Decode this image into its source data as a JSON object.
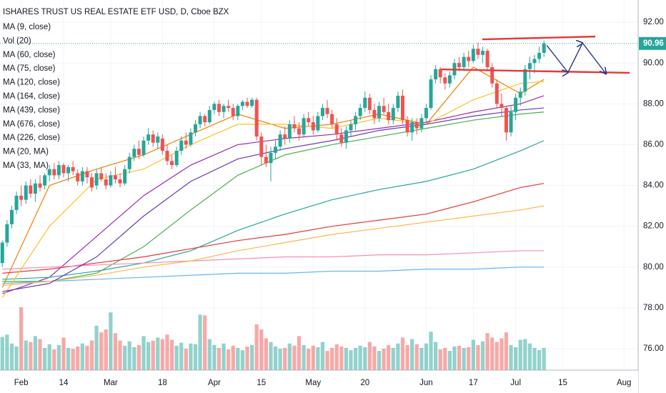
{
  "chart_data": {
    "type": "candlestick",
    "title": "ISHARES TRUST US REAL ESTATE ETF USD, D, Cboe BZX",
    "up_color": "#26a69a",
    "down_color": "#ef5350",
    "xlim": [
      -0.5,
      135
    ],
    "ylim": [
      74.95,
      93.09
    ],
    "xticks": [
      {
        "value": 4,
        "label": "Feb"
      },
      {
        "value": 13,
        "label": "14"
      },
      {
        "value": 23,
        "label": "Mar"
      },
      {
        "value": 34,
        "label": "18"
      },
      {
        "value": 45,
        "label": "Apr"
      },
      {
        "value": 55,
        "label": "15"
      },
      {
        "value": 66,
        "label": "May"
      },
      {
        "value": 77,
        "label": "20"
      },
      {
        "value": 90,
        "label": "Jun"
      },
      {
        "value": 100,
        "label": "17"
      },
      {
        "value": 109,
        "label": "Jul"
      },
      {
        "value": 119,
        "label": "15"
      },
      {
        "value": 132,
        "label": "Aug"
      }
    ],
    "yticks": [
      {
        "value": 76,
        "label": "76.00"
      },
      {
        "value": 78,
        "label": "78.00"
      },
      {
        "value": 80,
        "label": "80.00"
      },
      {
        "value": 82,
        "label": "82.00"
      },
      {
        "value": 84,
        "label": "84.00"
      },
      {
        "value": 86,
        "label": "86.00"
      },
      {
        "value": 88,
        "label": "88.00"
      },
      {
        "value": 90,
        "label": "90.00"
      },
      {
        "value": 92,
        "label": "92.00"
      }
    ],
    "grid": true,
    "last_price": 90.96,
    "last_price_color": "#26a69a",
    "candles": [
      [
        80.2,
        81.3,
        80.0,
        81.2
      ],
      [
        81.2,
        82.3,
        81.0,
        82.1
      ],
      [
        82.1,
        83.0,
        81.9,
        82.8
      ],
      [
        82.8,
        83.7,
        82.6,
        83.5
      ],
      [
        83.5,
        84.0,
        83.0,
        83.3
      ],
      [
        83.3,
        84.2,
        83.1,
        84.0
      ],
      [
        84.0,
        84.3,
        83.4,
        83.6
      ],
      [
        83.6,
        84.3,
        83.2,
        84.1
      ],
      [
        84.1,
        84.5,
        83.7,
        83.9
      ],
      [
        84.0,
        84.6,
        83.8,
        84.5
      ],
      [
        84.5,
        85.0,
        84.2,
        84.8
      ],
      [
        84.8,
        85.1,
        84.3,
        84.5
      ],
      [
        84.5,
        85.2,
        84.3,
        85.0
      ],
      [
        85.0,
        85.1,
        84.4,
        84.6
      ],
      [
        84.6,
        85.0,
        84.2,
        84.9
      ],
      [
        84.9,
        85.2,
        84.5,
        84.7
      ],
      [
        84.6,
        84.8,
        84.0,
        84.2
      ],
      [
        84.2,
        84.9,
        84.0,
        84.7
      ],
      [
        84.7,
        84.9,
        84.1,
        84.4
      ],
      [
        84.4,
        84.6,
        83.7,
        83.9
      ],
      [
        84.0,
        84.8,
        83.8,
        84.6
      ],
      [
        84.6,
        84.9,
        84.2,
        84.3
      ],
      [
        84.3,
        84.6,
        83.8,
        84.0
      ],
      [
        84.0,
        84.7,
        83.9,
        84.5
      ],
      [
        84.5,
        84.9,
        84.1,
        84.3
      ],
      [
        84.3,
        84.6,
        83.9,
        84.1
      ],
      [
        84.1,
        85.0,
        84.0,
        84.8
      ],
      [
        84.8,
        85.6,
        84.6,
        85.4
      ],
      [
        85.4,
        86.0,
        85.2,
        85.8
      ],
      [
        85.8,
        86.2,
        85.3,
        85.5
      ],
      [
        85.5,
        86.4,
        85.4,
        86.2
      ],
      [
        86.2,
        86.8,
        86.0,
        86.5
      ],
      [
        86.5,
        86.7,
        85.9,
        86.1
      ],
      [
        86.1,
        86.6,
        85.8,
        86.4
      ],
      [
        86.3,
        86.5,
        85.5,
        85.7
      ],
      [
        85.7,
        86.0,
        85.0,
        85.2
      ],
      [
        85.2,
        85.5,
        84.8,
        85.0
      ],
      [
        85.0,
        85.9,
        84.9,
        85.7
      ],
      [
        85.7,
        86.4,
        85.5,
        86.2
      ],
      [
        86.2,
        86.6,
        85.8,
        86.0
      ],
      [
        86.0,
        86.8,
        85.9,
        86.6
      ],
      [
        86.6,
        87.2,
        86.4,
        87.0
      ],
      [
        87.0,
        87.6,
        86.8,
        87.4
      ],
      [
        87.4,
        87.5,
        86.9,
        87.1
      ],
      [
        87.1,
        87.9,
        87.0,
        87.7
      ],
      [
        87.7,
        88.1,
        87.5,
        88.0
      ],
      [
        88.0,
        88.2,
        87.4,
        87.6
      ],
      [
        87.6,
        88.0,
        87.3,
        87.9
      ],
      [
        87.9,
        88.2,
        87.6,
        87.8
      ],
      [
        87.8,
        88.0,
        87.2,
        87.4
      ],
      [
        87.4,
        88.0,
        87.2,
        87.9
      ],
      [
        87.9,
        88.2,
        87.7,
        88.1
      ],
      [
        88.1,
        88.3,
        87.8,
        87.9
      ],
      [
        87.9,
        88.3,
        87.8,
        88.2
      ],
      [
        88.2,
        88.3,
        86.2,
        86.4
      ],
      [
        86.4,
        86.6,
        85.0,
        85.4
      ],
      [
        85.4,
        86.0,
        84.9,
        85.1
      ],
      [
        85.1,
        85.9,
        84.2,
        85.6
      ],
      [
        85.6,
        86.2,
        85.3,
        85.9
      ],
      [
        85.9,
        86.7,
        85.7,
        86.5
      ],
      [
        86.5,
        86.9,
        86.0,
        86.3
      ],
      [
        86.3,
        87.2,
        86.1,
        87.0
      ],
      [
        87.0,
        87.4,
        86.6,
        86.8
      ],
      [
        86.8,
        87.1,
        86.2,
        86.5
      ],
      [
        86.5,
        87.5,
        86.4,
        87.3
      ],
      [
        87.3,
        87.6,
        86.9,
        87.1
      ],
      [
        87.1,
        87.4,
        86.5,
        86.7
      ],
      [
        86.7,
        87.6,
        86.6,
        87.4
      ],
      [
        87.4,
        88.0,
        87.2,
        87.8
      ],
      [
        87.8,
        88.2,
        87.3,
        87.5
      ],
      [
        87.5,
        87.7,
        86.8,
        87.0
      ],
      [
        87.0,
        87.3,
        86.2,
        86.5
      ],
      [
        86.5,
        86.8,
        85.9,
        86.1
      ],
      [
        86.1,
        86.9,
        85.8,
        86.7
      ],
      [
        86.7,
        87.2,
        86.4,
        87.0
      ],
      [
        87.0,
        87.6,
        86.7,
        87.4
      ],
      [
        87.4,
        88.0,
        87.2,
        87.8
      ],
      [
        87.8,
        88.6,
        87.6,
        88.3
      ],
      [
        88.3,
        88.5,
        87.5,
        87.7
      ],
      [
        87.7,
        88.0,
        87.0,
        87.3
      ],
      [
        87.3,
        88.1,
        87.1,
        87.9
      ],
      [
        87.9,
        88.3,
        87.5,
        87.6
      ],
      [
        87.6,
        88.0,
        87.0,
        87.2
      ],
      [
        87.2,
        88.0,
        87.0,
        87.8
      ],
      [
        87.8,
        88.6,
        87.6,
        88.4
      ],
      [
        88.4,
        88.7,
        87.0,
        87.2
      ],
      [
        87.2,
        87.4,
        86.4,
        86.6
      ],
      [
        86.6,
        87.3,
        86.2,
        87.1
      ],
      [
        87.1,
        87.3,
        86.5,
        86.8
      ],
      [
        86.8,
        87.5,
        86.6,
        87.3
      ],
      [
        87.3,
        88.0,
        87.1,
        87.8
      ],
      [
        87.8,
        89.4,
        87.7,
        89.2
      ],
      [
        89.2,
        89.9,
        89.0,
        89.7
      ],
      [
        89.7,
        89.8,
        89.0,
        89.3
      ],
      [
        89.3,
        89.5,
        88.7,
        89.0
      ],
      [
        89.0,
        89.6,
        88.8,
        89.4
      ],
      [
        89.4,
        90.2,
        89.2,
        90.0
      ],
      [
        90.0,
        90.3,
        89.6,
        89.8
      ],
      [
        89.8,
        90.5,
        89.6,
        90.3
      ],
      [
        90.3,
        90.6,
        89.8,
        90.1
      ],
      [
        90.1,
        90.9,
        90.0,
        90.7
      ],
      [
        90.7,
        91.0,
        90.2,
        90.4
      ],
      [
        90.4,
        90.8,
        90.0,
        90.6
      ],
      [
        90.6,
        90.7,
        89.6,
        89.8
      ],
      [
        89.8,
        90.0,
        88.8,
        89.0
      ],
      [
        89.0,
        89.2,
        87.8,
        88.0
      ],
      [
        88.0,
        88.5,
        87.4,
        87.8
      ],
      [
        87.8,
        87.9,
        86.2,
        86.6
      ],
      [
        86.6,
        87.9,
        86.4,
        87.6
      ],
      [
        87.6,
        88.5,
        87.2,
        88.3
      ],
      [
        88.3,
        88.8,
        87.9,
        88.6
      ],
      [
        88.6,
        89.9,
        88.4,
        89.7
      ],
      [
        89.7,
        90.3,
        89.2,
        90.0
      ],
      [
        90.0,
        90.4,
        89.5,
        90.2
      ],
      [
        90.2,
        90.8,
        90.0,
        90.5
      ],
      [
        90.5,
        91.1,
        90.3,
        90.96
      ]
    ],
    "volume": {
      "name": "Vol (20)",
      "values": [
        4.5,
        4.8,
        3.6,
        3.2,
        8.5,
        4.0,
        3.8,
        4.6,
        4.2,
        3.0,
        3.5,
        2.8,
        3.4,
        4.4,
        3.0,
        2.9,
        3.2,
        3.6,
        3.3,
        4.0,
        6.0,
        5.1,
        5.5,
        7.8,
        5.0,
        4.0,
        3.3,
        3.9,
        3.1,
        3.4,
        4.6,
        3.8,
        4.0,
        4.4,
        4.2,
        4.8,
        4.1,
        3.3,
        3.7,
        2.9,
        3.6,
        3.5,
        7.5,
        7.4,
        4.2,
        3.4,
        3.0,
        3.6,
        2.8,
        3.3,
        3.0,
        2.7,
        3.2,
        3.4,
        6.2,
        5.5,
        4.3,
        3.8,
        3.2,
        2.9,
        3.0,
        3.6,
        3.3,
        4.6,
        3.4,
        2.9,
        3.3,
        3.1,
        3.8,
        2.6,
        3.0,
        3.5,
        3.2,
        3.0,
        2.7,
        3.0,
        3.3,
        3.1,
        3.8,
        3.2,
        2.6,
        2.9,
        3.4,
        3.0,
        3.6,
        4.4,
        3.4,
        4.2,
        3.5,
        3.0,
        3.6,
        5.2,
        3.8,
        2.8,
        3.0,
        2.6,
        3.2,
        3.3,
        3.0,
        3.1,
        4.1,
        3.4,
        3.9,
        5.0,
        4.4,
        3.8,
        4.3,
        5.1,
        3.4,
        3.1,
        4.1,
        4.2,
        3.6,
        3.0,
        2.7,
        3.0
      ]
    },
    "ma_x": [
      0,
      10,
      20,
      30,
      40,
      50,
      60,
      70,
      80,
      90,
      100,
      110,
      115
    ],
    "series": [
      {
        "name": "MA (9, close)",
        "color": "#f57c00",
        "values": [
          79.0,
          84.0,
          84.8,
          85.5,
          86.5,
          87.5,
          86.8,
          87.0,
          87.5,
          87.0,
          89.8,
          88.5,
          89.2
        ]
      },
      {
        "name": "MA (60, close)",
        "color": "#9c27b0",
        "values": [
          78.7,
          79.5,
          81.5,
          83.5,
          85.0,
          86.0,
          86.3,
          86.5,
          86.8,
          87.1,
          87.6,
          88.0,
          88.4
        ]
      },
      {
        "name": "MA (75, close)",
        "color": "#4caf50",
        "values": [
          79.3,
          79.3,
          79.7,
          81.0,
          82.8,
          84.5,
          85.5,
          86.0,
          86.4,
          86.8,
          87.2,
          87.5,
          87.6
        ]
      },
      {
        "name": "MA (120, close)",
        "color": "#26a69a",
        "values": [
          79.4,
          79.5,
          79.8,
          80.2,
          80.8,
          81.8,
          82.6,
          83.3,
          83.8,
          84.2,
          84.8,
          85.7,
          86.2
        ]
      },
      {
        "name": "MA (164, close)",
        "color": "#e53935",
        "values": [
          79.7,
          79.9,
          80.2,
          80.5,
          80.9,
          81.3,
          81.6,
          82.0,
          82.3,
          82.6,
          83.2,
          83.9,
          84.1
        ]
      },
      {
        "name": "MA (439, close)",
        "color": "#f48fb1",
        "values": [
          79.9,
          80.0,
          80.1,
          80.2,
          80.3,
          80.4,
          80.5,
          80.5,
          80.6,
          80.6,
          80.7,
          80.8,
          80.8
        ]
      },
      {
        "name": "MA (676, close)",
        "color": "#64b5f6",
        "values": [
          79.2,
          79.3,
          79.4,
          79.5,
          79.6,
          79.7,
          79.7,
          79.8,
          79.8,
          79.9,
          79.9,
          80.0,
          80.0
        ]
      },
      {
        "name": "MA (226, close)",
        "color": "#ffb74d",
        "values": [
          79.1,
          79.3,
          79.6,
          80.0,
          80.3,
          80.8,
          81.2,
          81.6,
          81.9,
          82.2,
          82.5,
          82.8,
          83.0
        ]
      },
      {
        "name": "MA (20, MA)",
        "color": "#fbc02d",
        "values": [
          78.5,
          82.0,
          84.3,
          84.8,
          86.0,
          87.0,
          87.0,
          86.8,
          87.3,
          87.0,
          88.2,
          89.0,
          89.1
        ]
      },
      {
        "name": "MA (33, MA)",
        "color": "#673ab7",
        "values": [
          78.8,
          79.2,
          80.5,
          82.5,
          84.2,
          85.3,
          85.8,
          86.2,
          86.7,
          87.0,
          87.4,
          87.7,
          87.8
        ]
      }
    ],
    "drawings": [
      {
        "color": "#e53935",
        "x": [
          101.9,
          125.9
        ],
        "values": [
          91.16,
          91.3
        ]
      },
      {
        "color": "#e53935",
        "x": [
          93.1,
          133.2
        ],
        "values": [
          89.69,
          89.52
        ]
      },
      {
        "color": "#283593",
        "x": [
          115.6,
          120.1,
          123.2,
          128.2
        ],
        "values": [
          90.87,
          89.54,
          90.98,
          89.47
        ],
        "arrows": true
      }
    ]
  }
}
